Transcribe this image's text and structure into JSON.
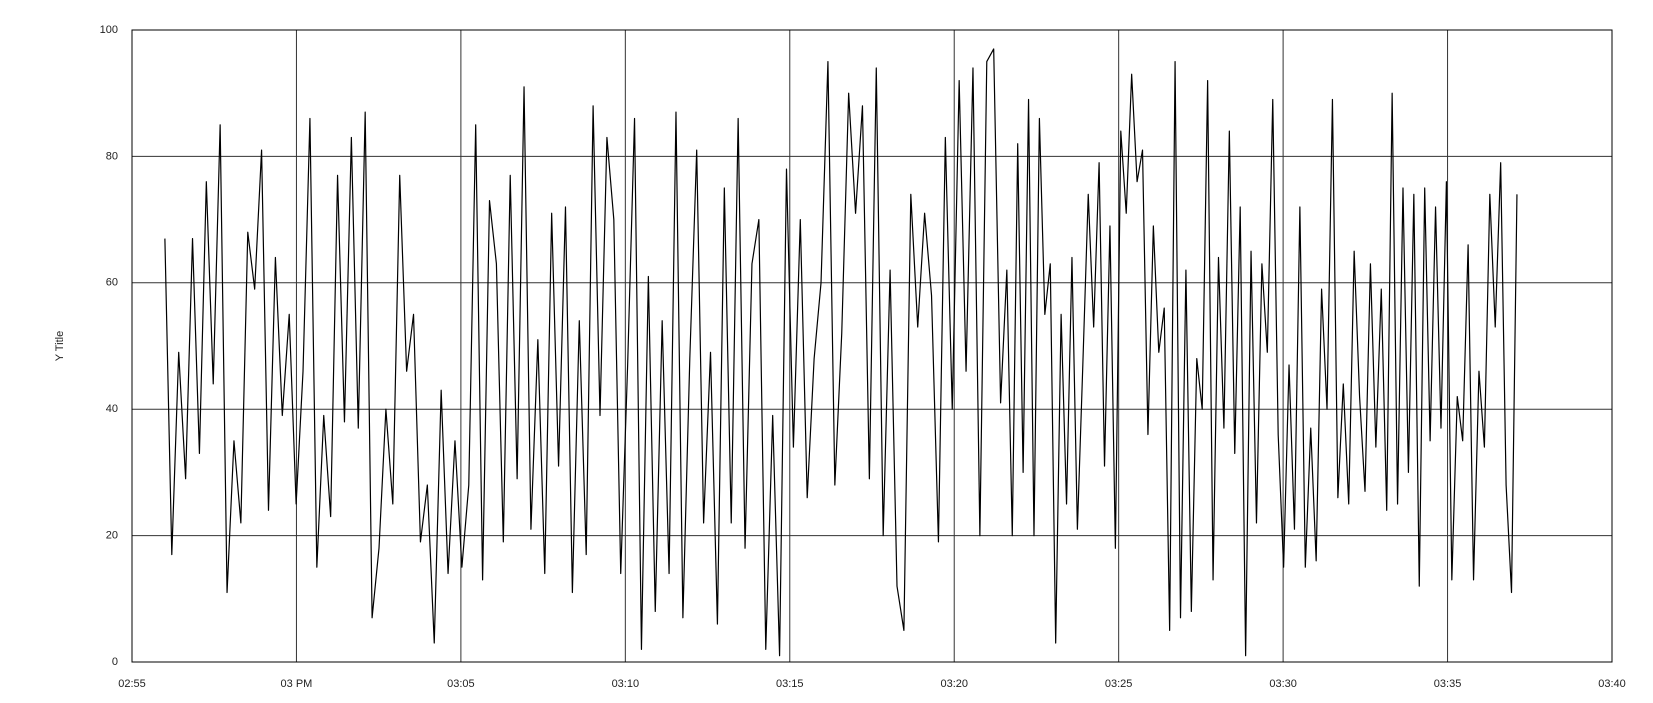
{
  "chart_data": {
    "type": "line",
    "y_label": "Y Title",
    "x": [
      896,
      896.21,
      896.42,
      896.63,
      896.84,
      897.05,
      897.26,
      897.47,
      897.68,
      897.89,
      898.1,
      898.31,
      898.52,
      898.73,
      898.94,
      899.15,
      899.36,
      899.57,
      899.78,
      899.99,
      900.2,
      900.41,
      900.62,
      900.83,
      901.04,
      901.25,
      901.46,
      901.67,
      901.88,
      902.09,
      902.3,
      902.51,
      902.72,
      902.93,
      903.14,
      903.35,
      903.56,
      903.77,
      903.98,
      904.19,
      904.4,
      904.61,
      904.82,
      905.03,
      905.24,
      905.45,
      905.66,
      905.87,
      906.08,
      906.29,
      906.5,
      906.71,
      906.92,
      907.13,
      907.34,
      907.55,
      907.76,
      907.97,
      908.18,
      908.39,
      908.6,
      908.81,
      909.02,
      909.23,
      909.44,
      909.65,
      909.86,
      910.07,
      910.28,
      910.49,
      910.7,
      910.91,
      911.12,
      911.33,
      911.54,
      911.75,
      911.96,
      912.17,
      912.38,
      912.59,
      912.8,
      913.01,
      913.22,
      913.43,
      913.64,
      913.85,
      914.06,
      914.27,
      914.48,
      914.69,
      914.9,
      915.11,
      915.32,
      915.53,
      915.74,
      915.95,
      916.16,
      916.37,
      916.58,
      916.79,
      917,
      917.21,
      917.42,
      917.63,
      917.84,
      918.05,
      918.26,
      918.47,
      918.68,
      918.89,
      919.1,
      919.31,
      919.52,
      919.73,
      919.94,
      920.15,
      920.36,
      920.57,
      920.78,
      920.99,
      921.2,
      921.41,
      921.6,
      921.765,
      921.93,
      922.095,
      922.26,
      922.425,
      922.59,
      922.755,
      922.92,
      923.085,
      923.25,
      923.415,
      923.58,
      923.745,
      923.91,
      924.075,
      924.24,
      924.405,
      924.57,
      924.735,
      924.9,
      925.065,
      925.23,
      925.395,
      925.56,
      925.725,
      925.89,
      926.055,
      926.22,
      926.385,
      926.55,
      926.715,
      926.88,
      927.045,
      927.21,
      927.375,
      927.54,
      927.705,
      927.87,
      928.035,
      928.2,
      928.365,
      928.53,
      928.695,
      928.86,
      929.025,
      929.19,
      929.355,
      929.52,
      929.685,
      929.85,
      930.015,
      930.18,
      930.345,
      930.51,
      930.675,
      930.84,
      931.005,
      931.17,
      931.335,
      931.5,
      931.665,
      931.83,
      931.995,
      932.16,
      932.325,
      932.49,
      932.655,
      932.82,
      932.985,
      933.15,
      933.315,
      933.48,
      933.645,
      933.81,
      933.975,
      934.14,
      934.305,
      934.47,
      934.635,
      934.8,
      934.965,
      935.13,
      935.295,
      935.46,
      935.625,
      935.79,
      935.955,
      936.12,
      936.285,
      936.45,
      936.615,
      936.78,
      936.945,
      937.11
    ],
    "values": [
      67,
      17,
      49,
      29,
      67,
      33,
      76,
      44,
      85,
      11,
      35,
      22,
      68,
      59,
      81,
      24,
      64,
      39,
      55,
      25,
      46,
      86,
      15,
      39,
      23,
      77,
      38,
      83,
      37,
      87,
      7,
      18,
      40,
      25,
      77,
      46,
      55,
      19,
      28,
      3,
      43,
      14,
      35,
      15,
      28,
      85,
      13,
      73,
      63,
      19,
      77,
      29,
      91,
      21,
      51,
      14,
      71,
      31,
      72,
      11,
      54,
      17,
      88,
      39,
      83,
      70,
      14,
      47,
      86,
      2,
      61,
      8,
      54,
      14,
      87,
      7,
      48,
      81,
      22,
      49,
      6,
      75,
      22,
      86,
      18,
      63,
      70,
      2,
      39,
      1,
      78,
      34,
      70,
      26,
      48,
      60,
      95,
      28,
      52,
      90,
      71,
      88,
      29,
      94,
      20,
      62,
      12,
      5,
      74,
      53,
      71,
      58,
      19,
      83,
      40,
      92,
      46,
      94,
      20,
      95,
      97,
      41,
      62,
      20,
      82,
      30,
      89,
      20,
      86,
      55,
      63,
      3,
      55,
      25,
      64,
      21,
      47,
      74,
      53,
      79,
      31,
      69,
      18,
      84,
      71,
      93,
      76,
      81,
      36,
      69,
      49,
      56,
      5,
      95,
      7,
      62,
      8,
      48,
      40,
      92,
      13,
      64,
      37,
      84,
      33,
      72,
      1,
      65,
      22,
      63,
      49,
      89,
      36,
      15,
      47,
      21,
      72,
      15,
      37,
      16,
      59,
      40,
      89,
      26,
      44,
      25,
      65,
      42,
      27,
      63,
      34,
      59,
      24,
      90,
      25,
      75,
      30,
      74,
      12,
      75,
      35,
      72,
      37,
      76,
      13,
      42,
      35,
      66,
      13,
      46,
      34,
      74,
      53,
      79,
      28,
      11,
      74
    ],
    "color": "#000000",
    "xlim": [
      895,
      940
    ],
    "xticks": [
      {
        "value": 895,
        "label": "02:55"
      },
      {
        "value": 900,
        "label": "03 PM"
      },
      {
        "value": 905,
        "label": "03:05"
      },
      {
        "value": 910,
        "label": "03:10"
      },
      {
        "value": 915,
        "label": "03:15"
      },
      {
        "value": 920,
        "label": "03:20"
      },
      {
        "value": 925,
        "label": "03:25"
      },
      {
        "value": 930,
        "label": "03:30"
      },
      {
        "value": 935,
        "label": "03:35"
      },
      {
        "value": 940,
        "label": "03:40"
      }
    ],
    "ylim": [
      0,
      100
    ],
    "yticks": [
      0,
      20,
      40,
      60,
      80,
      100
    ],
    "grid": true
  }
}
